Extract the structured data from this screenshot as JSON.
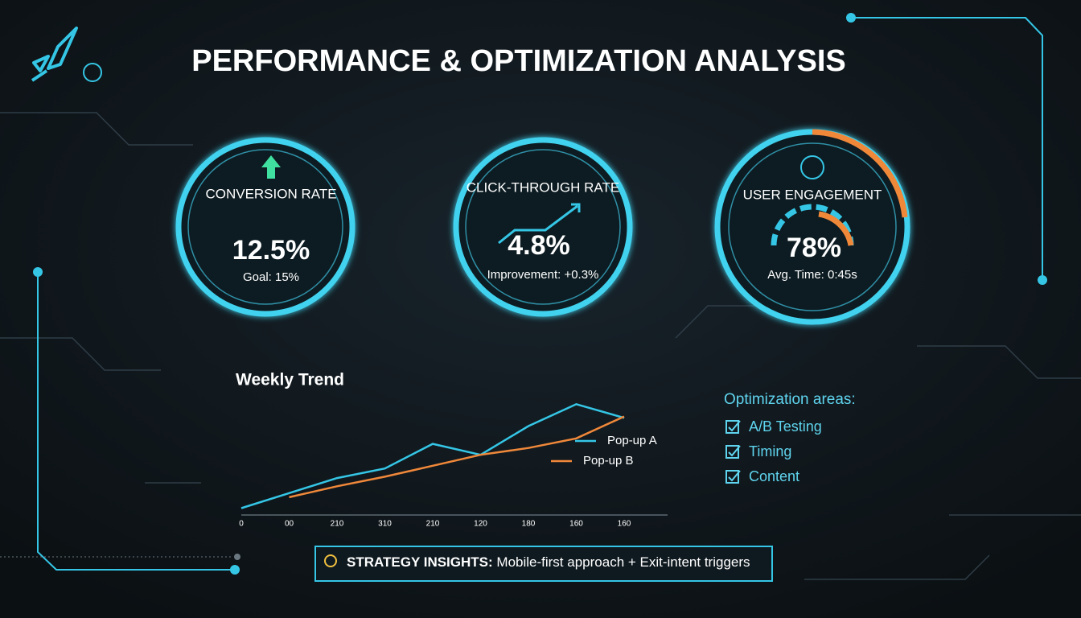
{
  "title": "PERFORMANCE & OPTIMIZATION ANALYSIS",
  "kpis": [
    {
      "label": "CONVERSION RATE",
      "value": "12.5%",
      "note": "Goal: 15%"
    },
    {
      "label": "CLICK-THROUGH RATE",
      "value": "4.8%",
      "note": "Improvement: +0.3%"
    },
    {
      "label": "USER ENGAGEMENT",
      "value": "78%",
      "note": "Avg. Time: 0:45s"
    }
  ],
  "chart_data": {
    "type": "line",
    "title": "Weekly Trend",
    "categories": [
      "0",
      "00",
      "210",
      "310",
      "210",
      "120",
      "180",
      "160",
      "160"
    ],
    "series": [
      {
        "name": "Pop-up A",
        "color": "#35c6e6",
        "values": [
          5,
          16,
          27,
          34,
          52,
          44,
          65,
          81,
          71
        ]
      },
      {
        "name": "Pop-up B",
        "color": "#f0883a",
        "values": [
          null,
          13,
          21,
          28,
          36,
          44,
          49,
          56,
          72
        ]
      }
    ],
    "ylim": [
      0,
      100
    ],
    "legend": "right"
  },
  "optimization": {
    "title": "Optimization areas:",
    "items": [
      "A/B Testing",
      "Timing",
      "Content"
    ]
  },
  "insights": {
    "label": "STRATEGY INSIGHTS:",
    "text": "Mobile-first approach + Exit-intent triggers"
  }
}
